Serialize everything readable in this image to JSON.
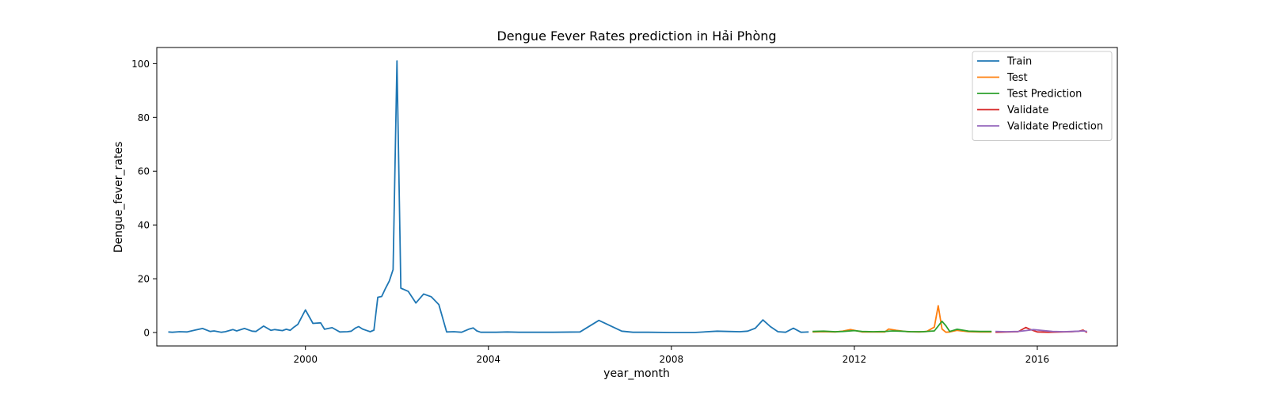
{
  "chart_data": {
    "type": "line",
    "title": "Dengue Fever Rates prediction in Hải Phòng",
    "xlabel": "year_month",
    "ylabel": "Dengue_fever_rates",
    "xlim": [
      "1996-10-01",
      "2017-10-01"
    ],
    "ylim": [
      -5,
      106
    ],
    "x_ticks": [
      "2000-01-01",
      "2004-01-01",
      "2008-01-01",
      "2012-01-01",
      "2016-01-01"
    ],
    "x_tick_labels": [
      "2000",
      "2004",
      "2008",
      "2012",
      "2016"
    ],
    "y_ticks": [
      0,
      20,
      40,
      60,
      80,
      100
    ],
    "y_tick_labels": [
      "0",
      "20",
      "40",
      "60",
      "80",
      "100"
    ],
    "grid": false,
    "legend_position": "top-right",
    "series": [
      {
        "name": "Train",
        "color": "#1f77b4",
        "x": [
          "1997-01-01",
          "1997-02-01",
          "1997-04-01",
          "1997-06-01",
          "1997-08-01",
          "1997-10-01",
          "1997-12-01",
          "1998-01-01",
          "1998-03-01",
          "1998-04-01",
          "1998-06-01",
          "1998-07-01",
          "1998-09-01",
          "1998-11-01",
          "1998-12-01",
          "1999-02-01",
          "1999-04-01",
          "1999-05-01",
          "1999-07-01",
          "1999-08-01",
          "1999-09-01",
          "1999-10-01",
          "1999-11-01",
          "2000-01-01",
          "2000-03-01",
          "2000-05-01",
          "2000-06-01",
          "2000-08-01",
          "2000-10-01",
          "2000-12-01",
          "2001-01-01",
          "2001-02-01",
          "2001-03-01",
          "2001-04-01",
          "2001-05-01",
          "2001-06-01",
          "2001-07-01",
          "2001-08-01",
          "2001-09-01",
          "2001-10-01",
          "2001-11-01",
          "2001-12-01",
          "2002-01-01",
          "2002-02-01",
          "2002-04-01",
          "2002-06-01",
          "2002-08-01",
          "2002-10-01",
          "2002-12-01",
          "2003-02-01",
          "2003-04-01",
          "2003-06-01",
          "2003-08-01",
          "2003-09-01",
          "2003-10-01",
          "2003-11-01",
          "2003-12-01",
          "2004-03-01",
          "2004-06-01",
          "2004-09-01",
          "2005-01-01",
          "2005-06-01",
          "2006-01-01",
          "2006-06-01",
          "2006-12-01",
          "2007-03-01",
          "2007-07-01",
          "2008-01-01",
          "2008-07-01",
          "2009-01-01",
          "2009-04-01",
          "2009-07-01",
          "2009-09-01",
          "2009-11-01",
          "2010-01-01",
          "2010-03-01",
          "2010-05-01",
          "2010-07-01",
          "2010-09-01",
          "2010-11-01",
          "2011-01-01"
        ],
        "y": [
          0.2,
          0.1,
          0.3,
          0.2,
          0.9,
          1.5,
          0.4,
          0.6,
          0.1,
          0.3,
          1.1,
          0.6,
          1.5,
          0.5,
          0.4,
          2.4,
          0.8,
          1.1,
          0.7,
          1.2,
          0.8,
          2.0,
          3.0,
          8.4,
          3.4,
          3.6,
          1.2,
          1.8,
          0.2,
          0.3,
          0.5,
          1.6,
          2.2,
          1.3,
          0.8,
          0.3,
          0.9,
          13.1,
          13.4,
          16.4,
          19.2,
          23.4,
          101.0,
          16.5,
          15.3,
          11.0,
          14.3,
          13.3,
          10.4,
          0.2,
          0.3,
          0.1,
          1.3,
          1.7,
          0.6,
          0.1,
          0.1,
          0.1,
          0.2,
          0.1,
          0.1,
          0.1,
          0.2,
          4.5,
          0.5,
          0.1,
          0.1,
          0.0,
          0.0,
          0.5,
          0.4,
          0.3,
          0.5,
          1.6,
          4.7,
          2.2,
          0.3,
          0.1,
          1.6,
          0.1,
          0.2
        ]
      },
      {
        "name": "Test",
        "color": "#ff7f0e",
        "x": [
          "2011-02-01",
          "2011-05-01",
          "2011-08-01",
          "2011-10-01",
          "2011-12-01",
          "2012-03-01",
          "2012-06-01",
          "2012-09-01",
          "2012-10-01",
          "2012-12-01",
          "2013-03-01",
          "2013-06-01",
          "2013-08-01",
          "2013-10-01",
          "2013-11-01",
          "2013-12-01",
          "2014-01-01",
          "2014-02-01",
          "2014-04-01",
          "2014-07-01",
          "2014-10-01",
          "2015-01-01"
        ],
        "y": [
          0.2,
          0.3,
          0.2,
          0.5,
          1.1,
          0.2,
          0.2,
          0.2,
          1.3,
          0.8,
          0.3,
          0.2,
          0.4,
          2.0,
          10.0,
          1.3,
          0.1,
          0.2,
          0.8,
          0.3,
          0.2,
          0.2
        ]
      },
      {
        "name": "Test Prediction",
        "color": "#2ca02c",
        "x": [
          "2011-02-01",
          "2011-05-01",
          "2011-08-01",
          "2011-10-01",
          "2012-01-01",
          "2012-03-01",
          "2012-06-01",
          "2012-09-01",
          "2012-11-01",
          "2013-01-01",
          "2013-04-01",
          "2013-07-01",
          "2013-10-01",
          "2013-12-01",
          "2014-01-01",
          "2014-02-01",
          "2014-04-01",
          "2014-07-01",
          "2014-10-01",
          "2015-01-01"
        ],
        "y": [
          0.4,
          0.5,
          0.3,
          0.4,
          0.7,
          0.4,
          0.3,
          0.4,
          0.6,
          0.5,
          0.3,
          0.3,
          0.6,
          4.2,
          2.5,
          0.4,
          1.2,
          0.5,
          0.4,
          0.4
        ]
      },
      {
        "name": "Validate",
        "color": "#d62728",
        "x": [
          "2015-02-01",
          "2015-05-01",
          "2015-08-01",
          "2015-10-01",
          "2015-11-01",
          "2016-01-01",
          "2016-04-01",
          "2016-07-01",
          "2016-10-01",
          "2016-12-01",
          "2017-01-01",
          "2017-02-01"
        ],
        "y": [
          0.1,
          0.2,
          0.3,
          1.9,
          1.2,
          0.2,
          0.1,
          0.2,
          0.3,
          0.5,
          0.9,
          0.0
        ]
      },
      {
        "name": "Validate Prediction",
        "color": "#9467bd",
        "x": [
          "2015-02-01",
          "2015-05-01",
          "2015-08-01",
          "2015-10-01",
          "2015-12-01",
          "2016-02-01",
          "2016-05-01",
          "2016-08-01",
          "2016-10-01",
          "2016-12-01",
          "2017-01-01",
          "2017-02-01"
        ],
        "y": [
          0.4,
          0.3,
          0.4,
          0.7,
          1.1,
          0.8,
          0.4,
          0.3,
          0.4,
          0.5,
          0.6,
          0.4
        ]
      }
    ]
  }
}
